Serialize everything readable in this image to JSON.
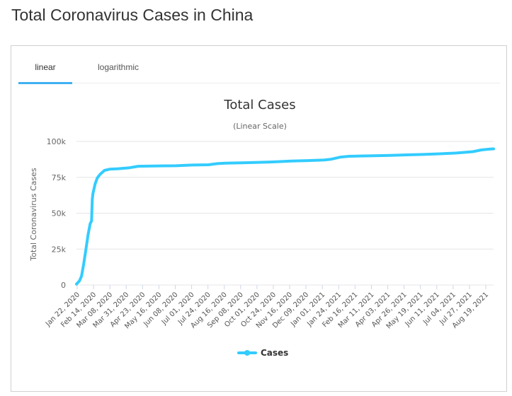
{
  "page": {
    "title": "Total Coronavirus Cases in China"
  },
  "tabs": [
    {
      "label": "linear",
      "active": true
    },
    {
      "label": "logarithmic",
      "active": false
    }
  ],
  "colors": {
    "series": "#33ccff",
    "tab_underline": "#3fb0f0",
    "grid": "#e6e6e6"
  },
  "chart_data": {
    "type": "line",
    "title": "Total Cases",
    "subtitle": "(Linear Scale)",
    "ylabel": "Total Coronavirus Cases",
    "ylim": [
      0,
      100000
    ],
    "y_ticks": [
      0,
      25000,
      50000,
      75000,
      100000
    ],
    "y_tick_labels": [
      "0",
      "25k",
      "50k",
      "75k",
      "100k"
    ],
    "x_tick_labels": [
      "Jan 22, 2020",
      "Feb 14, 2020",
      "Mar 08, 2020",
      "Mar 31, 2020",
      "Apr 23, 2020",
      "May 16, 2020",
      "Jun 08, 2020",
      "Jul 01, 2020",
      "Jul 24, 2020",
      "Aug 16, 2020",
      "Sep 08, 2020",
      "Oct 01, 2020",
      "Oct 24, 2020",
      "Nov 16, 2020",
      "Dec 09, 2020",
      "Jan 01, 2021",
      "Jan 24, 2021",
      "Feb 16, 2021",
      "Mar 11, 2021",
      "Apr 03, 2021",
      "Apr 26, 2021",
      "May 19, 2021",
      "Jun 11, 2021",
      "Jul 04, 2021",
      "Jul 27, 2021",
      "Aug 19, 2021"
    ],
    "grid": true,
    "legend_position": "bottom-center",
    "series": [
      {
        "name": "Cases",
        "points": [
          [
            "2020-01-22",
            571
          ],
          [
            "2020-01-26",
            2744
          ],
          [
            "2020-01-29",
            6087
          ],
          [
            "2020-02-01",
            14380
          ],
          [
            "2020-02-04",
            24324
          ],
          [
            "2020-02-07",
            34546
          ],
          [
            "2020-02-10",
            42638
          ],
          [
            "2020-02-12",
            44653
          ],
          [
            "2020-02-13",
            59804
          ],
          [
            "2020-02-14",
            63851
          ],
          [
            "2020-02-17",
            70548
          ],
          [
            "2020-02-20",
            74576
          ],
          [
            "2020-02-24",
            77150
          ],
          [
            "2020-03-01",
            79824
          ],
          [
            "2020-03-08",
            80651
          ],
          [
            "2020-03-20",
            80967
          ],
          [
            "2020-04-05",
            81669
          ],
          [
            "2020-04-17",
            82692
          ],
          [
            "2020-05-16",
            82941
          ],
          [
            "2020-06-08",
            83040
          ],
          [
            "2020-07-01",
            83534
          ],
          [
            "2020-07-24",
            83729
          ],
          [
            "2020-08-05",
            84528
          ],
          [
            "2020-08-16",
            84849
          ],
          [
            "2020-09-08",
            85144
          ],
          [
            "2020-10-01",
            85414
          ],
          [
            "2020-10-24",
            85754
          ],
          [
            "2020-11-16",
            86346
          ],
          [
            "2020-12-09",
            86661
          ],
          [
            "2021-01-01",
            87071
          ],
          [
            "2021-01-10",
            87536
          ],
          [
            "2021-01-24",
            89115
          ],
          [
            "2021-02-05",
            89669
          ],
          [
            "2021-02-16",
            89788
          ],
          [
            "2021-03-11",
            89976
          ],
          [
            "2021-04-03",
            90305
          ],
          [
            "2021-04-26",
            90657
          ],
          [
            "2021-05-19",
            90954
          ],
          [
            "2021-06-11",
            91358
          ],
          [
            "2021-07-04",
            91937
          ],
          [
            "2021-07-27",
            92875
          ],
          [
            "2021-08-08",
            94080
          ],
          [
            "2021-08-19",
            94651
          ],
          [
            "2021-08-25",
            94832
          ]
        ]
      }
    ]
  }
}
